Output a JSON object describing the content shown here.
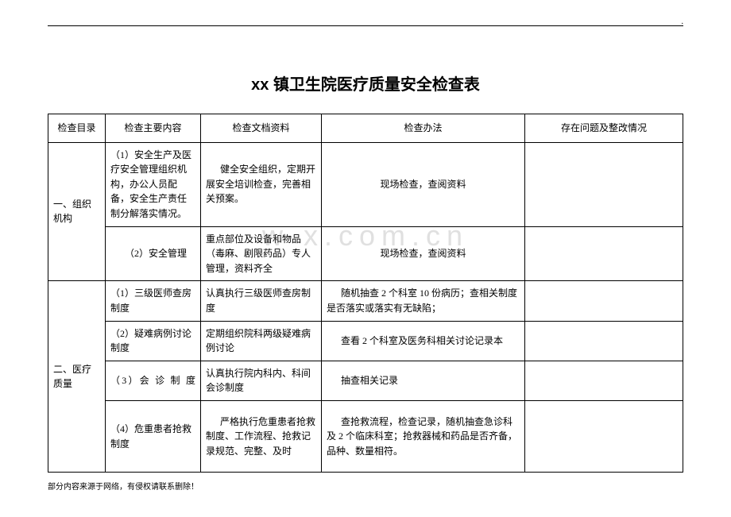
{
  "page": {
    "title": "xx 镇卫生院医疗质量安全检查表",
    "top_mark": ".",
    "footer": "部分内容来源于网络，有侵权请联系删除！",
    "watermark": "w   x.com.cn"
  },
  "table": {
    "headers": {
      "c1": "检查目录",
      "c2": "检查主要内容",
      "c3": "检查文档资料",
      "c4": "检查办法",
      "c5": "存在问题及整改情况"
    },
    "section1": {
      "label": "一、组织机构",
      "r1": {
        "content": "（1）安全生产及医疗安全管理组织机构，办公人员配备，安全生产责任制分解落实情况。",
        "doc": "健全安全组织，定期开展安全培训检查，完善相关预案。",
        "method": "现场检查，查阅资料"
      },
      "r2": {
        "content": "（2）安全管理",
        "doc": "重点部位及设备和物品（毒麻、剧限药品）专人管理，资料齐全",
        "method": "现场检查，查阅资料"
      }
    },
    "section2": {
      "label": "二、医疗质量",
      "r1": {
        "content": "（1）三级医师查房制度",
        "doc": "认真执行三级医师查房制度",
        "method": "随机抽查 2 个科室 10 份病历；查相关制度是否落实或落实有无缺陷；"
      },
      "r2": {
        "content": "（2）疑难病例讨论制度",
        "doc": "定期组织院科两级疑难病例讨论",
        "method": "查看 2 个科室及医务科相关讨论记录本"
      },
      "r3": {
        "content": "（3）会 诊 制 度",
        "doc": "认真执行院内科内、科间会诊制度",
        "method": "抽查相关记录"
      },
      "r4": {
        "content": "（4）危重患者抢救制度",
        "doc": "严格执行危重患者抢救制度、工作流程、抢救记录规范、完整、及时",
        "method": "查抢救流程，检查记录，随机抽查急诊科及 2 个临床科室；抢救器械和药品是否齐备，品种、数量相符。"
      }
    }
  },
  "style": {
    "background": "#ffffff",
    "border_color": "#000000",
    "text_color": "#000000",
    "title_fontsize": 20,
    "body_fontsize": 12,
    "footer_fontsize": 10,
    "watermark_color": "rgba(130,130,130,0.25)"
  }
}
